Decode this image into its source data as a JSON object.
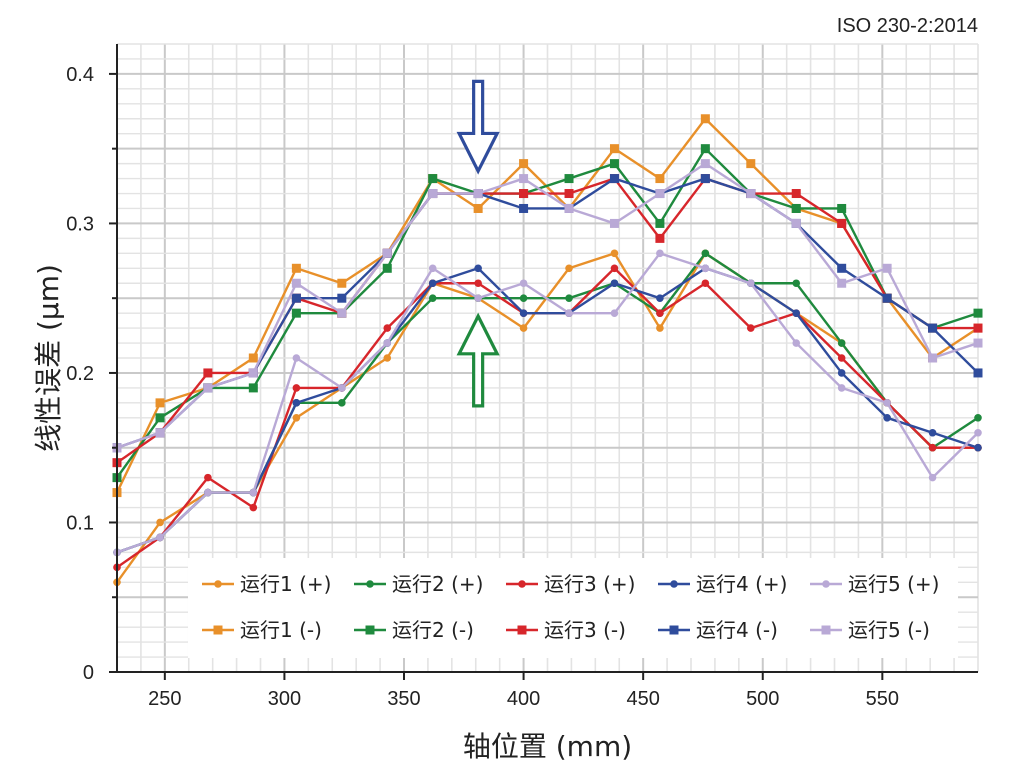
{
  "standard_label": "ISO 230-2:2014",
  "chart_data": {
    "type": "line",
    "title": "",
    "xlabel": "轴位置 (mm)",
    "ylabel": "线性误差 (μm)",
    "xlim": [
      230,
      590
    ],
    "ylim": [
      0,
      0.42
    ],
    "xticks": [
      250,
      300,
      350,
      400,
      450,
      500,
      550
    ],
    "yticks": [
      0,
      0.1,
      0.2,
      0.3,
      0.4
    ],
    "ytick_labels": [
      "0",
      "0.1",
      "0.2",
      "0.3",
      "0.4"
    ],
    "grid": true,
    "legend_position": "bottom",
    "x": [
      230,
      248,
      268,
      287,
      305,
      324,
      343,
      362,
      381,
      400,
      419,
      438,
      457,
      476,
      495,
      514,
      533,
      552,
      571,
      590
    ],
    "series": [
      {
        "name": "运行1 (+)",
        "color": "#e8902a",
        "marker": "circle",
        "values": [
          0.06,
          0.1,
          0.12,
          0.12,
          0.17,
          0.19,
          0.21,
          0.26,
          0.25,
          0.23,
          0.27,
          0.28,
          0.23,
          0.28,
          0.26,
          0.24,
          0.22,
          0.18,
          0.15,
          0.15
        ]
      },
      {
        "name": "运行2 (+)",
        "color": "#1f8a3e",
        "marker": "circle",
        "values": [
          0.08,
          0.09,
          0.12,
          0.12,
          0.18,
          0.18,
          0.22,
          0.25,
          0.25,
          0.25,
          0.25,
          0.26,
          0.24,
          0.28,
          0.26,
          0.26,
          0.22,
          0.18,
          0.15,
          0.17
        ]
      },
      {
        "name": "运行3 (+)",
        "color": "#d7262b",
        "marker": "circle",
        "values": [
          0.07,
          0.09,
          0.13,
          0.11,
          0.19,
          0.19,
          0.23,
          0.26,
          0.26,
          0.24,
          0.24,
          0.27,
          0.24,
          0.26,
          0.23,
          0.24,
          0.21,
          0.18,
          0.15,
          0.15
        ]
      },
      {
        "name": "运行4 (+)",
        "color": "#2f4c9c",
        "marker": "circle",
        "values": [
          0.08,
          0.09,
          0.12,
          0.12,
          0.18,
          0.19,
          0.22,
          0.26,
          0.27,
          0.24,
          0.24,
          0.26,
          0.25,
          0.27,
          0.26,
          0.24,
          0.2,
          0.17,
          0.16,
          0.15
        ]
      },
      {
        "name": "运行5 (+)",
        "color": "#b9a9d6",
        "marker": "circle",
        "values": [
          0.08,
          0.09,
          0.12,
          0.12,
          0.21,
          0.19,
          0.22,
          0.27,
          0.25,
          0.26,
          0.24,
          0.24,
          0.28,
          0.27,
          0.26,
          0.22,
          0.19,
          0.18,
          0.13,
          0.16
        ]
      },
      {
        "name": "运行1 (-)",
        "color": "#e8902a",
        "marker": "square",
        "values": [
          0.12,
          0.18,
          0.19,
          0.21,
          0.27,
          0.26,
          0.28,
          0.33,
          0.31,
          0.34,
          0.31,
          0.35,
          0.33,
          0.37,
          0.34,
          0.31,
          0.3,
          0.25,
          0.21,
          0.23
        ]
      },
      {
        "name": "运行2 (-)",
        "color": "#1f8a3e",
        "marker": "square",
        "values": [
          0.13,
          0.17,
          0.19,
          0.19,
          0.24,
          0.24,
          0.27,
          0.33,
          0.32,
          0.32,
          0.33,
          0.34,
          0.3,
          0.35,
          0.32,
          0.31,
          0.31,
          0.25,
          0.23,
          0.24
        ]
      },
      {
        "name": "运行3 (-)",
        "color": "#d7262b",
        "marker": "square",
        "values": [
          0.14,
          0.16,
          0.2,
          0.2,
          0.25,
          0.24,
          0.28,
          0.32,
          0.32,
          0.32,
          0.32,
          0.33,
          0.29,
          0.33,
          0.32,
          0.32,
          0.3,
          0.25,
          0.23,
          0.23
        ]
      },
      {
        "name": "运行4 (-)",
        "color": "#2f4c9c",
        "marker": "square",
        "values": [
          0.15,
          0.16,
          0.19,
          0.2,
          0.25,
          0.25,
          0.28,
          0.32,
          0.32,
          0.31,
          0.31,
          0.33,
          0.32,
          0.33,
          0.32,
          0.3,
          0.27,
          0.25,
          0.23,
          0.2
        ]
      },
      {
        "name": "运行5 (-)",
        "color": "#b9a9d6",
        "marker": "square",
        "values": [
          0.15,
          0.16,
          0.19,
          0.2,
          0.26,
          0.24,
          0.28,
          0.32,
          0.32,
          0.33,
          0.31,
          0.3,
          0.32,
          0.34,
          0.32,
          0.3,
          0.26,
          0.27,
          0.21,
          0.22
        ]
      }
    ],
    "annotations": [
      {
        "shape": "arrow-down",
        "color": "#2f4c9c",
        "x": 381,
        "y_top": 0.395,
        "y_bottom": 0.335
      },
      {
        "shape": "arrow-up",
        "color": "#1f8a3e",
        "x": 381,
        "y_bottom": 0.178,
        "y_top": 0.238
      }
    ]
  }
}
